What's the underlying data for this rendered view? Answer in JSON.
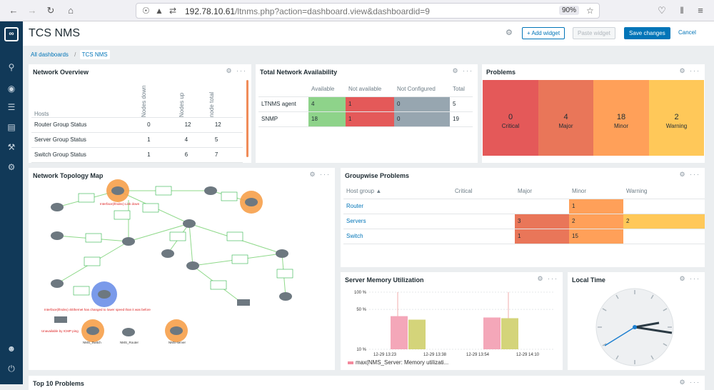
{
  "browser": {
    "url_host": "192.78.10.61",
    "url_path": "/ltnms.php?action=dashboard.view&dashboardid=9",
    "zoom": "90%"
  },
  "header": {
    "title": "TCS NMS",
    "add_widget": "+ Add widget",
    "paste_widget": "Paste widget",
    "save": "Save changes",
    "cancel": "Cancel"
  },
  "breadcrumb": {
    "all": "All dashboards",
    "current": "TCS NMS"
  },
  "network_overview": {
    "title": "Network Overview",
    "cols": [
      "Hosts",
      "Nodes down",
      "Nodes up",
      "node total"
    ],
    "rows": [
      {
        "name": "Router Group Status",
        "down": "0",
        "up": "12",
        "total": "12"
      },
      {
        "name": "Server Group Status",
        "down": "1",
        "up": "4",
        "total": "5"
      },
      {
        "name": "Switch Group Status",
        "down": "1",
        "up": "6",
        "total": "7"
      }
    ]
  },
  "availability": {
    "title": "Total Network Availability",
    "cols": [
      "",
      "Available",
      "Not available",
      "Not Configured",
      "Total"
    ],
    "rows": [
      {
        "name": "LTNMS agent",
        "avail": "4",
        "notavail": "1",
        "notconf": "0",
        "total": "5"
      },
      {
        "name": "SNMP",
        "avail": "18",
        "notavail": "1",
        "notconf": "0",
        "total": "19"
      }
    ]
  },
  "problems": {
    "title": "Problems",
    "items": [
      {
        "count": "0",
        "label": "Critical",
        "color": "#e45959"
      },
      {
        "count": "4",
        "label": "Major",
        "color": "#e97659"
      },
      {
        "count": "18",
        "label": "Minor",
        "color": "#ffa059"
      },
      {
        "count": "2",
        "label": "Warning",
        "color": "#ffc859"
      }
    ]
  },
  "topology": {
    "title": "Network Topology Map",
    "alert1": "Interface(ifIndex) Link down",
    "alert2": "Interface(ifIndex) 4Ethernet has changed to lower speed than it was before",
    "alert3": "Unavailable by ICMP ping",
    "node_labels": [
      "NMS_Switch",
      "NMS_Router",
      "NMS-server"
    ]
  },
  "groupwise": {
    "title": "Groupwise Problems",
    "cols": [
      "Host group ▲",
      "Critical",
      "Major",
      "Minor",
      "Warning"
    ],
    "rows": [
      {
        "name": "Router",
        "critical": "",
        "major": "",
        "minor": "1",
        "warning": ""
      },
      {
        "name": "Servers",
        "critical": "",
        "major": "3",
        "minor": "2",
        "warning": "2"
      },
      {
        "name": "Switch",
        "critical": "",
        "major": "1",
        "minor": "15",
        "warning": ""
      }
    ]
  },
  "memory": {
    "title": "Server Memory Utilization",
    "legend": "max(NMS_Server: Memory utilizati...",
    "chart_data": {
      "type": "bar",
      "yticks": [
        "100 %",
        "50 %",
        "10 %"
      ],
      "xticks": [
        "12-29 13:23",
        "12-29 13:38",
        "12-29 13:54",
        "12-29 14:10"
      ],
      "series": [
        {
          "name": "max(NMS_Server: Memory utilizati...",
          "values": [
            38,
            33,
            36,
            35
          ]
        }
      ],
      "colors": [
        "#f4a7b9",
        "#d4d47a",
        "#f4a7b9",
        "#d4d47a"
      ]
    }
  },
  "clock": {
    "title": "Local Time"
  },
  "top10": {
    "title": "Top 10 Problems"
  }
}
